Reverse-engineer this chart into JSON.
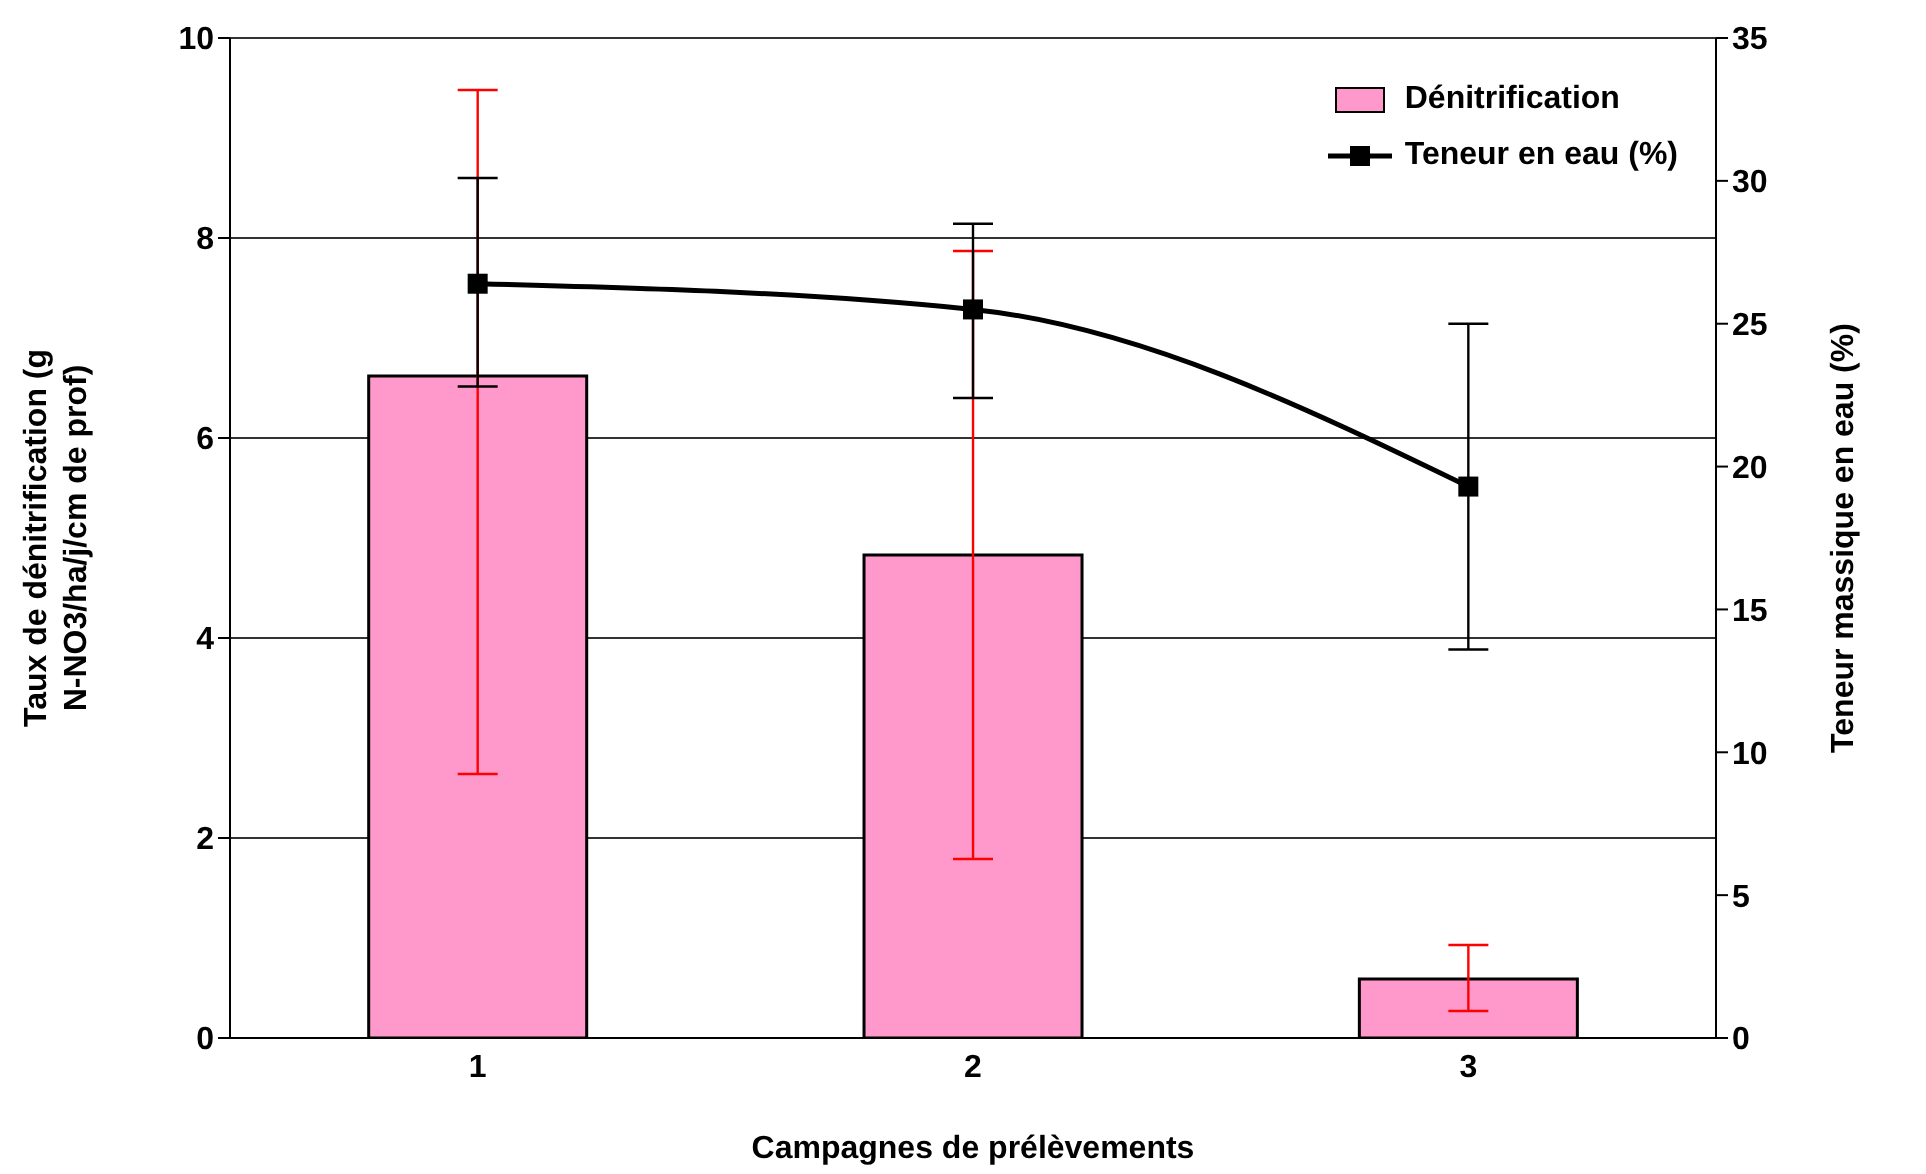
{
  "chart_data": {
    "type": "bar",
    "xlabel": "Campagnes de prélèvements",
    "ylabel": "Taux de dénitrification (g N-NO3/ha/j/cm de prof)",
    "y2label": "Teneur massique en eau (%)",
    "categories": [
      "1",
      "2",
      "3"
    ],
    "series": [
      {
        "name": "Dénitrification",
        "color": "#ff99cc",
        "values": [
          6.62,
          4.83,
          0.59
        ],
        "errors": [
          [
            2.64,
            9.48
          ],
          [
            1.79,
            7.87
          ],
          [
            0.27,
            0.93
          ]
        ]
      },
      {
        "name": "Teneur en eau (%)",
        "type": "line",
        "axis": "y2",
        "color": "#000000",
        "marker": "square",
        "values": [
          26.4,
          25.5,
          19.3
        ],
        "errors": [
          [
            22.8,
            30.1
          ],
          [
            22.4,
            28.5
          ],
          [
            13.6,
            25.0
          ]
        ]
      }
    ],
    "ylim": [
      0,
      10
    ],
    "yticks": [
      0,
      2,
      4,
      6,
      8,
      10
    ],
    "y2lim": [
      0,
      35
    ],
    "y2ticks": [
      0,
      5,
      10,
      15,
      20,
      25,
      30,
      35
    ],
    "grid": "y",
    "legend": "top right"
  }
}
